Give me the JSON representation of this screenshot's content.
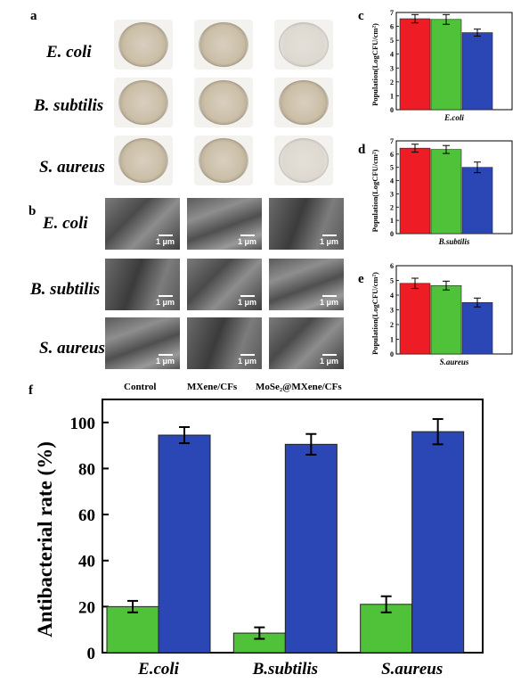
{
  "panels": {
    "a": "a",
    "b": "b",
    "c": "c",
    "d": "d",
    "e": "e",
    "f": "f"
  },
  "species_rows": [
    "E. coli",
    "B. subtilis",
    "S. aureus"
  ],
  "sem_scale": "1 μm",
  "small_charts_ylabel": "Population(LogCFU/cm²)",
  "legend": [
    "Control",
    "MXene/CFs",
    "MoSe₂@MXene/CFs"
  ],
  "colors": {
    "control": "#ee1c24",
    "mxene": "#4fc23a",
    "mose2": "#2b47b5"
  },
  "chart_data": [
    {
      "panel": "c",
      "type": "bar",
      "xlabel": "E.coli",
      "ylabel": "Population(LogCFU/cm²)",
      "ylim": [
        0,
        7
      ],
      "yticks": [
        0,
        1,
        2,
        3,
        4,
        5,
        6,
        7
      ],
      "categories": [
        "E.coli"
      ],
      "series": [
        {
          "name": "Control",
          "values": [
            6.55
          ],
          "errors": [
            0.3
          ]
        },
        {
          "name": "MXene/CFs",
          "values": [
            6.5
          ],
          "errors": [
            0.35
          ]
        },
        {
          "name": "MoSe₂@MXene/CFs",
          "values": [
            5.55
          ],
          "errors": [
            0.25
          ]
        }
      ]
    },
    {
      "panel": "d",
      "type": "bar",
      "xlabel": "B.subtilis",
      "ylabel": "Population(LogCFU/cm²)",
      "ylim": [
        0,
        7
      ],
      "yticks": [
        0,
        1,
        2,
        3,
        4,
        5,
        6,
        7
      ],
      "categories": [
        "B.subtilis"
      ],
      "series": [
        {
          "name": "Control",
          "values": [
            6.45
          ],
          "errors": [
            0.3
          ]
        },
        {
          "name": "MXene/CFs",
          "values": [
            6.35
          ],
          "errors": [
            0.3
          ]
        },
        {
          "name": "MoSe₂@MXene/CFs",
          "values": [
            5.0
          ],
          "errors": [
            0.4
          ]
        }
      ]
    },
    {
      "panel": "e",
      "type": "bar",
      "xlabel": "S.aureus",
      "ylabel": "Population(LogCFU/cm²)",
      "ylim": [
        0,
        6
      ],
      "yticks": [
        0,
        1,
        2,
        3,
        4,
        5,
        6
      ],
      "categories": [
        "S.aureus"
      ],
      "series": [
        {
          "name": "Control",
          "values": [
            4.8
          ],
          "errors": [
            0.35
          ]
        },
        {
          "name": "MXene/CFs",
          "values": [
            4.65
          ],
          "errors": [
            0.3
          ]
        },
        {
          "name": "MoSe₂@MXene/CFs",
          "values": [
            3.5
          ],
          "errors": [
            0.3
          ]
        }
      ]
    },
    {
      "panel": "f",
      "type": "bar",
      "ylabel": "Antibacterial rate (%)",
      "ylim": [
        0,
        110
      ],
      "yticks": [
        0,
        20,
        40,
        60,
        80,
        100
      ],
      "categories": [
        "E.coli",
        "B.subtilis",
        "S.aureus"
      ],
      "series": [
        {
          "name": "MXene/CFs",
          "values": [
            20,
            8.5,
            21
          ],
          "errors": [
            2.5,
            2.5,
            3.5
          ]
        },
        {
          "name": "MoSe₂@MXene/CFs",
          "values": [
            94.5,
            90.5,
            96
          ],
          "errors": [
            3.5,
            4.5,
            5.5
          ]
        }
      ]
    }
  ]
}
